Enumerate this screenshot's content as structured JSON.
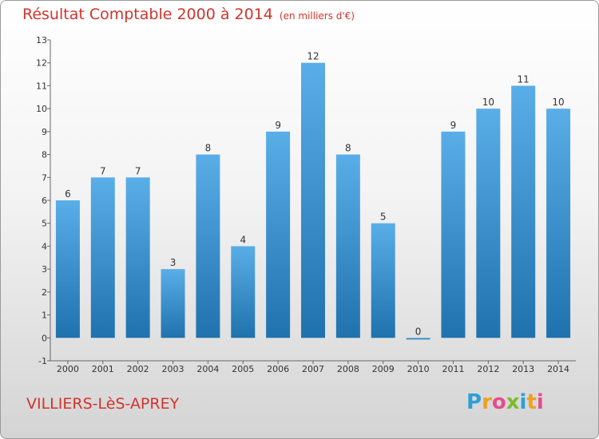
{
  "title": "Résultat Comptable 2000 à 2014",
  "subtitle": "(en milliers d'€)",
  "place": "VILLIERS-LèS-APREY",
  "logo": {
    "letters": [
      "P",
      "r",
      "o",
      "x",
      "i",
      "t",
      "i"
    ],
    "colors": [
      "#2e9fd8",
      "#f0a020",
      "#e84c8c",
      "#7dbb2a",
      "#2e9fd8",
      "#f0a020",
      "#e84c8c"
    ]
  },
  "colors": {
    "bar_light": "#5aaee8",
    "bar_dark": "#1f72ad",
    "title": "#d2342c"
  },
  "chart_data": {
    "type": "bar",
    "title": "Résultat Comptable 2000 à 2014",
    "subtitle": "(en milliers d'€)",
    "categories": [
      "2000",
      "2001",
      "2002",
      "2003",
      "2004",
      "2005",
      "2006",
      "2007",
      "2008",
      "2009",
      "2010",
      "2011",
      "2012",
      "2013",
      "2014"
    ],
    "values": [
      6,
      7,
      7,
      3,
      8,
      4,
      9,
      12,
      8,
      5,
      0,
      9,
      10,
      11,
      10
    ],
    "ylim": [
      -1,
      13
    ],
    "yticks": [
      -1,
      0,
      1,
      2,
      3,
      4,
      5,
      6,
      7,
      8,
      9,
      10,
      11,
      12,
      13
    ],
    "grid": false,
    "legend": "none"
  }
}
